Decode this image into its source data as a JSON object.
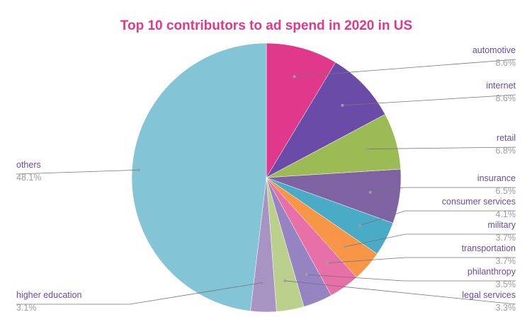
{
  "chart_data": {
    "type": "pie",
    "title": "Top 10 contributors to ad spend in 2020 in US",
    "slices": [
      {
        "label": "automotive",
        "value": 8.6,
        "pct_label": "8.6%",
        "color": "#e0388a"
      },
      {
        "label": "internet",
        "value": 8.6,
        "pct_label": "8.6%",
        "color": "#6a4ca8"
      },
      {
        "label": "retail",
        "value": 6.8,
        "pct_label": "6.8%",
        "color": "#9dbb55"
      },
      {
        "label": "insurance",
        "value": 6.5,
        "pct_label": "6.5%",
        "color": "#7f62a2"
      },
      {
        "label": "consumer services",
        "value": 4.1,
        "pct_label": "4.1%",
        "color": "#4aabc6"
      },
      {
        "label": "military",
        "value": 3.7,
        "pct_label": "3.7%",
        "color": "#f79646"
      },
      {
        "label": "transportation",
        "value": 3.7,
        "pct_label": "3.7%",
        "color": "#e870a8"
      },
      {
        "label": "philanthropy",
        "value": 3.5,
        "pct_label": "3.5%",
        "color": "#9683c2"
      },
      {
        "label": "legal services",
        "value": 3.3,
        "pct_label": "3.3%",
        "color": "#bcd08e"
      },
      {
        "label": "higher education",
        "value": 3.1,
        "pct_label": "3.1%",
        "color": "#a894c2"
      },
      {
        "label": "others",
        "value": 48.1,
        "pct_label": "48.1%",
        "color": "#83c4d6"
      }
    ],
    "label_color": "#6a4ca8",
    "percent_color": "#9e9e9e",
    "legend": "none (labels with leader lines)"
  }
}
